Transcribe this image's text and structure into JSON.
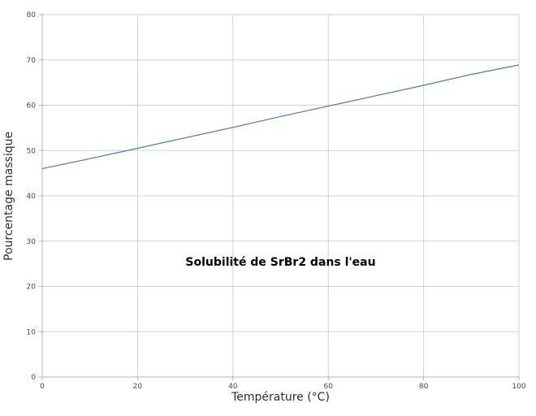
{
  "window": {
    "background": "#ffffff"
  },
  "chart_data": {
    "type": "line",
    "title": "Solubilité de SrBr2 dans l'eau",
    "xlabel": "Température (°C)",
    "ylabel": "Pourcentage massique",
    "x": [
      0,
      10,
      20,
      30,
      40,
      50,
      60,
      70,
      80,
      90,
      100
    ],
    "values": [
      46.0,
      48.2,
      50.5,
      52.8,
      55.1,
      57.5,
      59.8,
      62.1,
      64.4,
      66.8,
      68.9
    ],
    "xlim": [
      0,
      100
    ],
    "ylim": [
      0,
      80
    ],
    "x_ticks": [
      0,
      20,
      40,
      60,
      80,
      100
    ],
    "y_ticks": [
      0,
      10,
      20,
      30,
      40,
      50,
      60,
      70,
      80
    ],
    "grid": true,
    "legend": "none",
    "colors": {
      "line": "#4878a8",
      "grid": "#d2d2d2",
      "axis": "#b5b5b5",
      "tick_label": "#4a4a4a",
      "axis_title": "#2e2e2e",
      "title": "#000000"
    }
  }
}
